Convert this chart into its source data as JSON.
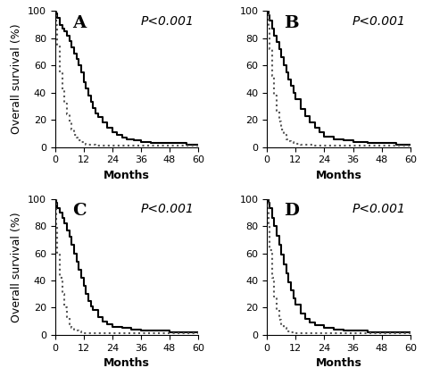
{
  "panels": [
    {
      "label": "A",
      "pvalue": "P<0.001",
      "solid_x": [
        0,
        0.5,
        1,
        2,
        3,
        4,
        5,
        6,
        7,
        8,
        9,
        10,
        11,
        12,
        13,
        14,
        15,
        16,
        17,
        18,
        20,
        22,
        24,
        26,
        28,
        30,
        33,
        36,
        40,
        45,
        50,
        55,
        60
      ],
      "solid_y": [
        100,
        98,
        95,
        90,
        87,
        85,
        82,
        78,
        73,
        69,
        65,
        60,
        55,
        48,
        43,
        38,
        33,
        29,
        25,
        22,
        18,
        14,
        11,
        9,
        7,
        6,
        5,
        4,
        3,
        3,
        3,
        2,
        2
      ],
      "dotted_x": [
        0,
        0.5,
        1,
        2,
        3,
        4,
        5,
        6,
        7,
        8,
        9,
        10,
        11,
        12,
        13,
        14,
        15,
        16,
        17,
        18,
        20,
        22,
        24,
        30,
        36,
        45,
        60
      ],
      "dotted_y": [
        100,
        90,
        75,
        55,
        42,
        32,
        24,
        18,
        13,
        9,
        7,
        5,
        4,
        3,
        2,
        2,
        1.5,
        1.5,
        1,
        1,
        1,
        1,
        1,
        1,
        1,
        1,
        1
      ]
    },
    {
      "label": "B",
      "pvalue": "P<0.001",
      "solid_x": [
        0,
        0.5,
        1,
        2,
        3,
        4,
        5,
        6,
        7,
        8,
        9,
        10,
        11,
        12,
        14,
        16,
        18,
        20,
        22,
        24,
        28,
        32,
        36,
        42,
        48,
        54,
        60
      ],
      "solid_y": [
        100,
        97,
        93,
        87,
        82,
        77,
        72,
        66,
        60,
        55,
        50,
        45,
        40,
        35,
        28,
        23,
        18,
        14,
        11,
        8,
        6,
        5,
        4,
        3,
        3,
        2,
        2
      ],
      "dotted_x": [
        0,
        0.5,
        1,
        2,
        3,
        4,
        5,
        6,
        7,
        8,
        9,
        10,
        11,
        12,
        14,
        16,
        18,
        20,
        24,
        30,
        36,
        48,
        60
      ],
      "dotted_y": [
        100,
        88,
        72,
        52,
        38,
        27,
        19,
        13,
        9,
        6,
        4.5,
        3.5,
        3,
        2.5,
        2,
        1.5,
        1.5,
        1,
        1,
        1,
        1,
        1,
        1
      ]
    },
    {
      "label": "C",
      "pvalue": "P<0.001",
      "solid_x": [
        0,
        0.5,
        1,
        2,
        3,
        4,
        5,
        6,
        7,
        8,
        9,
        10,
        11,
        12,
        13,
        14,
        15,
        16,
        18,
        20,
        22,
        24,
        28,
        32,
        36,
        42,
        48,
        54,
        60
      ],
      "solid_y": [
        100,
        97,
        93,
        90,
        86,
        82,
        77,
        72,
        66,
        60,
        54,
        48,
        42,
        36,
        30,
        25,
        21,
        18,
        13,
        10,
        8,
        6,
        5,
        4,
        3,
        3,
        2,
        2,
        2
      ],
      "dotted_x": [
        0,
        0.5,
        1,
        2,
        3,
        4,
        5,
        6,
        7,
        8,
        9,
        10,
        11,
        12,
        14,
        16,
        18,
        20,
        24,
        30,
        36,
        48,
        60
      ],
      "dotted_y": [
        100,
        80,
        60,
        42,
        30,
        20,
        13,
        8,
        5.5,
        4,
        3,
        2.5,
        2,
        1.5,
        1.5,
        1.5,
        1,
        1,
        1,
        1,
        1,
        1,
        1
      ]
    },
    {
      "label": "D",
      "pvalue": "P<0.001",
      "solid_x": [
        0,
        0.5,
        1,
        2,
        3,
        4,
        5,
        6,
        7,
        8,
        9,
        10,
        11,
        12,
        14,
        16,
        18,
        20,
        24,
        28,
        32,
        36,
        42,
        48,
        54,
        60
      ],
      "solid_y": [
        100,
        97,
        93,
        86,
        80,
        73,
        66,
        59,
        52,
        45,
        39,
        33,
        27,
        22,
        16,
        12,
        9,
        7,
        5,
        4,
        3,
        3,
        2,
        2,
        2,
        2
      ],
      "dotted_x": [
        0,
        0.5,
        1,
        2,
        3,
        4,
        5,
        6,
        7,
        8,
        9,
        10,
        11,
        12,
        14,
        16,
        18,
        20,
        24,
        30,
        36,
        48,
        60
      ],
      "dotted_y": [
        100,
        82,
        62,
        42,
        28,
        18,
        11,
        7,
        5,
        3.5,
        2.5,
        2,
        1.5,
        1.5,
        1,
        1,
        1,
        1,
        1,
        1,
        1,
        1,
        1
      ]
    }
  ],
  "xlabel": "Months",
  "ylabel": "Overall survival (%)",
  "xlim": [
    0,
    60
  ],
  "ylim": [
    0,
    100
  ],
  "xticks": [
    0,
    12,
    24,
    36,
    48,
    60
  ],
  "yticks": [
    0,
    20,
    40,
    60,
    80,
    100
  ],
  "solid_color": "#000000",
  "dotted_color": "#555555",
  "line_width": 1.5,
  "background_color": "#ffffff",
  "tick_fontsize": 8,
  "axis_label_fontsize": 9,
  "pvalue_fontsize": 10,
  "panel_label_fontsize": 14
}
